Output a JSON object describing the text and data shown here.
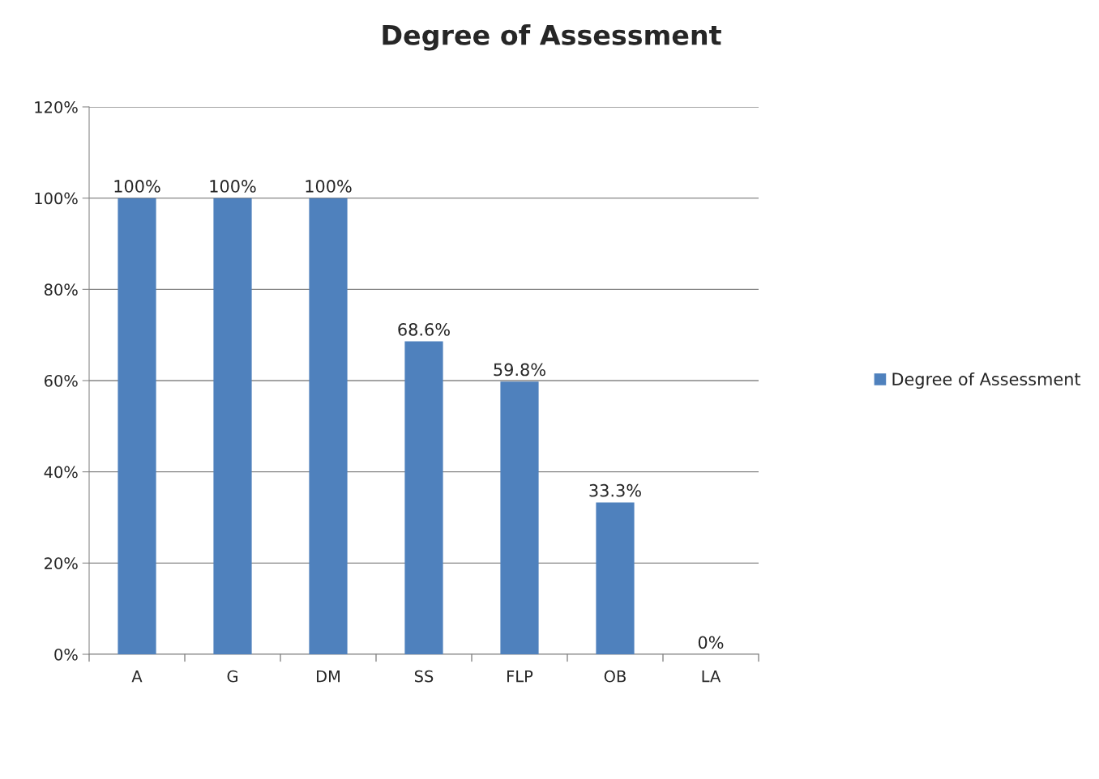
{
  "chart_data": {
    "type": "bar",
    "title": "Degree of Assessment",
    "categories": [
      "A",
      "G",
      "DM",
      "SS",
      "FLP",
      "OB",
      "LA"
    ],
    "series": [
      {
        "name": "Degree of Assessment",
        "color": "#4f81bd",
        "values": [
          100,
          100,
          100,
          68.6,
          59.8,
          33.3,
          0
        ],
        "value_labels": [
          "100%",
          "100%",
          "100%",
          "68.6%",
          "59.8%",
          "33.3%",
          "0%"
        ]
      }
    ],
    "ylim": [
      0,
      120
    ],
    "yticks": [
      {
        "value": 0,
        "label": "0%"
      },
      {
        "value": 20,
        "label": "20%"
      },
      {
        "value": 40,
        "label": "40%"
      },
      {
        "value": 60,
        "label": "60%"
      },
      {
        "value": 80,
        "label": "80%"
      },
      {
        "value": 100,
        "label": "100%"
      },
      {
        "value": 120,
        "label": "120%"
      }
    ],
    "grid": "y",
    "legend": "right"
  }
}
